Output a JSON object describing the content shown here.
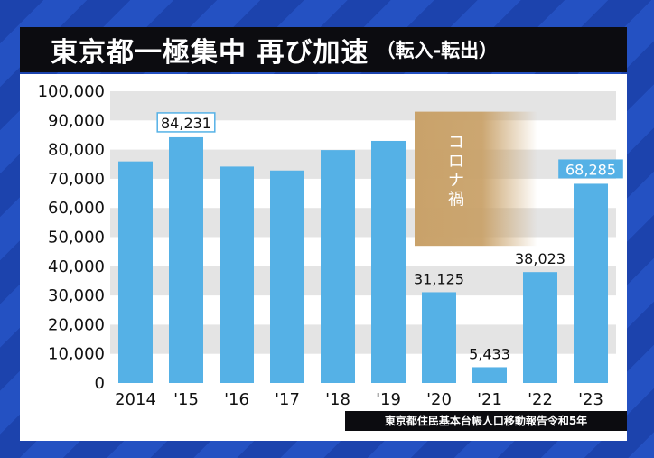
{
  "header": {
    "title_main": "東京都一極集中 再び加速",
    "title_sub": "（転入-転出）"
  },
  "annotation": {
    "covid_label": "コロナ禍"
  },
  "source": "東京都住民基本台帳人口移動報告令和5年",
  "colors": {
    "bar": "#55b1e6",
    "highlight_fill": "#55b1e6",
    "covid_band": "#c9a26a",
    "title_bg": "#0c0c10"
  },
  "chart_data": {
    "type": "bar",
    "title": "東京都一極集中 再び加速（転入-転出）",
    "xlabel": "",
    "ylabel": "",
    "categories": [
      "2014",
      "'15",
      "'16",
      "'17",
      "'18",
      "'19",
      "'20",
      "'21",
      "'22",
      "'23"
    ],
    "values": [
      75954,
      84231,
      74177,
      72830,
      79844,
      82982,
      31125,
      5433,
      38023,
      68285
    ],
    "data_labels": [
      null,
      "84,231",
      null,
      null,
      null,
      null,
      "31,125",
      "5,433",
      "38,023",
      "68,285"
    ],
    "ylim": [
      0,
      100000
    ],
    "yticks": [
      0,
      10000,
      20000,
      30000,
      40000,
      50000,
      60000,
      70000,
      80000,
      90000,
      100000
    ],
    "ytick_labels": [
      "0",
      "10,000",
      "20,000",
      "30,000",
      "40,000",
      "50,000",
      "60,000",
      "70,000",
      "80,000",
      "90,000",
      "100,000"
    ],
    "grid": "alternating horizontal bands",
    "legend": "none",
    "shaded_region": {
      "label": "コロナ禍",
      "from": "'20",
      "to": "'21",
      "y_range": [
        47000,
        93000
      ]
    }
  }
}
